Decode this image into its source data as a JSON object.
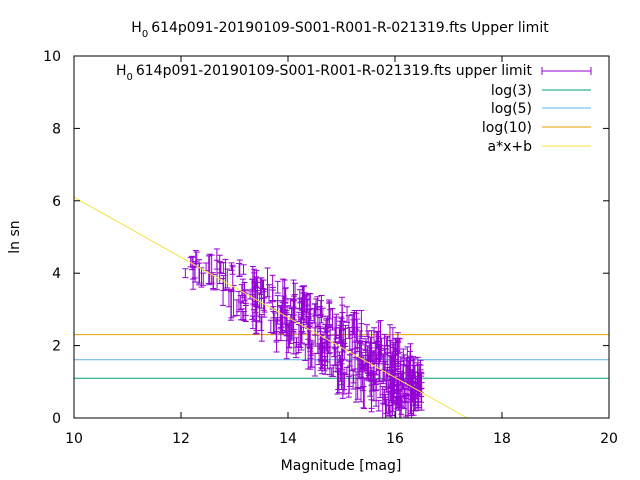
{
  "chart_data": {
    "type": "scatter",
    "title_main": "H",
    "title_sub": "0",
    "title_rest": "614p091-20190109-S001-R001-R-021319.fts Upper limit",
    "xlabel": "Magnitude [mag]",
    "ylabel": "ln sn",
    "xlim": [
      10,
      20
    ],
    "ylim": [
      0,
      10
    ],
    "xticks": [
      "10",
      "12",
      "14",
      "16",
      "18",
      "20"
    ],
    "yticks": [
      "0",
      "2",
      "4",
      "6",
      "8",
      "10"
    ],
    "grid": false,
    "legend_position": "top-right",
    "colors": {
      "points": "#9400d3",
      "log3": "#009e73",
      "log5": "#56b4e9",
      "log10": "#e69f00",
      "fit": "#f0e442"
    },
    "series": [
      {
        "name_main": "H",
        "name_sub": "0",
        "name_rest": "614p091-20190109-S001-R001-R-021319.fts upper limit",
        "kind": "errorbars",
        "envelope": {
          "x_range": [
            12.0,
            16.5
          ],
          "trend": {
            "slope": -0.83,
            "intercept": 14.4
          },
          "upper_edge": [
            [
              12.0,
              4.9
            ],
            [
              13.0,
              4.6
            ],
            [
              14.0,
              3.5
            ],
            [
              15.0,
              2.9
            ],
            [
              16.0,
              2.5
            ],
            [
              16.5,
              1.9
            ]
          ],
          "lower_edge": [
            [
              12.3,
              4.0
            ],
            [
              13.0,
              3.0
            ],
            [
              14.0,
              1.8
            ],
            [
              15.0,
              0.6
            ],
            [
              16.0,
              0.1
            ],
            [
              16.5,
              0.6
            ]
          ],
          "yerr": [
            0.1,
            0.45
          ]
        }
      },
      {
        "name": "log(3)",
        "kind": "hline",
        "value": 1.0986
      },
      {
        "name": "log(5)",
        "kind": "hline",
        "value": 1.6094
      },
      {
        "name": "log(10)",
        "kind": "hline",
        "value": 2.3026
      },
      {
        "name": "a*x+b",
        "kind": "line",
        "slope": -0.83,
        "intercept": 14.4
      }
    ]
  }
}
